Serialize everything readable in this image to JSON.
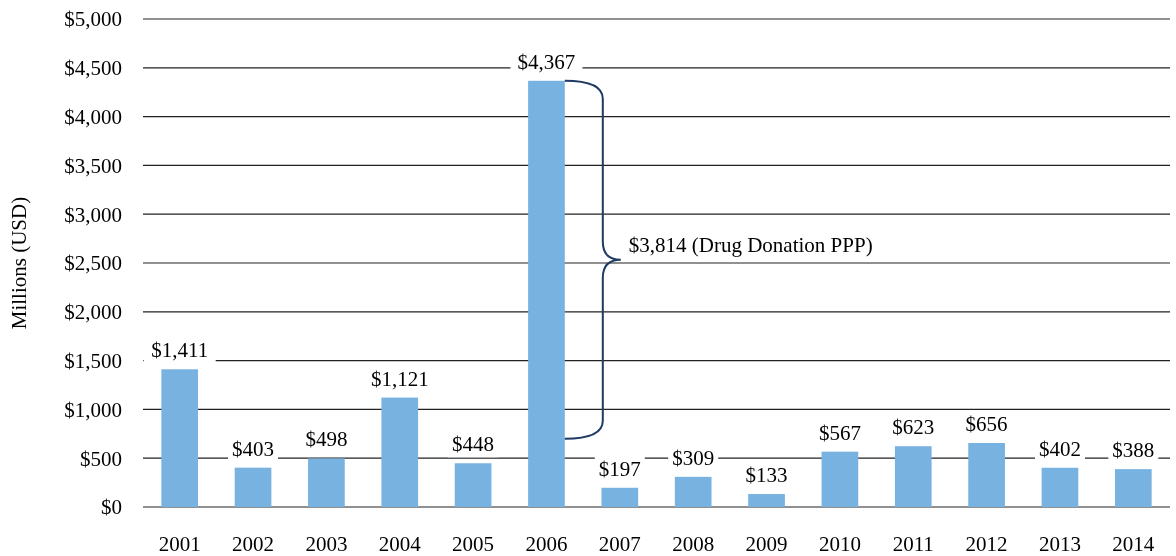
{
  "chart_data": {
    "type": "bar",
    "ylabel": "Millions (USD)",
    "categories": [
      "2001",
      "2002",
      "2003",
      "2004",
      "2005",
      "2006",
      "2007",
      "2008",
      "2009",
      "2010",
      "2011",
      "2012",
      "2013",
      "2014"
    ],
    "values": [
      1411,
      403,
      498,
      1121,
      448,
      4367,
      197,
      309,
      133,
      567,
      623,
      656,
      402,
      388
    ],
    "value_labels": [
      "$1,411",
      "$403",
      "$498",
      "$1,121",
      "$448",
      "$4,367",
      "$197",
      "$309",
      "$133",
      "$567",
      "$623",
      "$656",
      "$402",
      "$388"
    ],
    "color": "#78b2e0",
    "ylim": [
      0,
      5000
    ],
    "yticks": [
      {
        "value": 0,
        "label": "$0"
      },
      {
        "value": 500,
        "label": "$500"
      },
      {
        "value": 1000,
        "label": "$1,000"
      },
      {
        "value": 1500,
        "label": "$1,500"
      },
      {
        "value": 2000,
        "label": "$2,000"
      },
      {
        "value": 2500,
        "label": "$2,500"
      },
      {
        "value": 3000,
        "label": "$3,000"
      },
      {
        "value": 3500,
        "label": "$3,500"
      },
      {
        "value": 4000,
        "label": "$4,000"
      },
      {
        "value": 4500,
        "label": "$4,500"
      },
      {
        "value": 5000,
        "label": "$5,000"
      }
    ],
    "grid": "y",
    "annotations": [
      "$3,814 (Drug Donation PPP)"
    ]
  }
}
